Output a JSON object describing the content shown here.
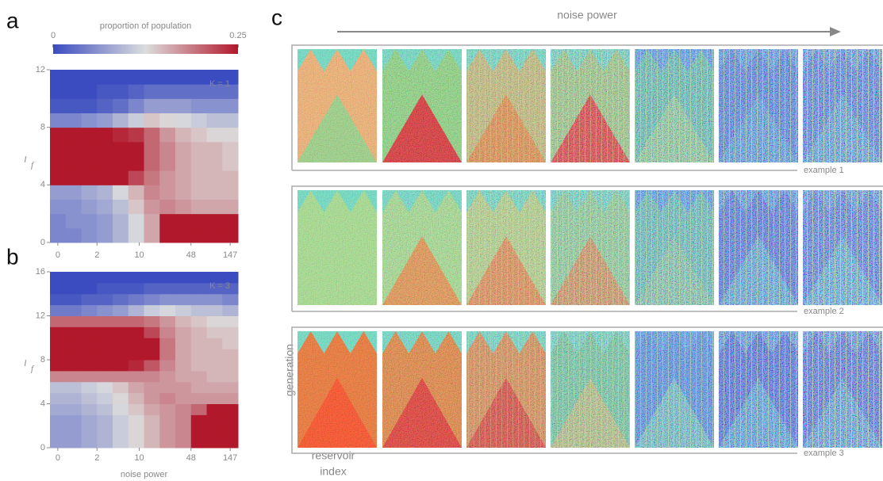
{
  "panel_labels": [
    "a",
    "b",
    "c"
  ],
  "chart_data": [
    {
      "type": "heatmap",
      "title": "K = 1",
      "ylabel": "I",
      "ylabel_sub": "f",
      "xlim": [
        0,
        12
      ],
      "xticks": [
        {
          "value": 0.5,
          "label": "0"
        },
        {
          "value": 3,
          "label": "2"
        },
        {
          "value": 5.7,
          "label": "10"
        },
        {
          "value": 9,
          "label": "48"
        },
        {
          "value": 11.5,
          "label": "147"
        }
      ],
      "ylim": [
        0,
        12
      ],
      "yticks": [
        0,
        4,
        8,
        12
      ],
      "colorbar": {
        "label": "proportion of population",
        "lim": [
          0,
          0.25
        ],
        "ticks": [
          0,
          0.25
        ],
        "colors": [
          "#3b4cc0",
          "#dcdddd",
          "#b2182b"
        ]
      },
      "values": [
        [
          0.05,
          0.05,
          0.06,
          0.07,
          0.09,
          0.12,
          0.16,
          0.25,
          0.25,
          0.25,
          0.25,
          0.25
        ],
        [
          0.05,
          0.06,
          0.06,
          0.07,
          0.09,
          0.12,
          0.16,
          0.25,
          0.25,
          0.25,
          0.25,
          0.25
        ],
        [
          0.06,
          0.06,
          0.07,
          0.08,
          0.1,
          0.14,
          0.17,
          0.18,
          0.17,
          0.16,
          0.16,
          0.16
        ],
        [
          0.07,
          0.07,
          0.08,
          0.09,
          0.12,
          0.15,
          0.18,
          0.17,
          0.16,
          0.15,
          0.15,
          0.15
        ],
        [
          0.25,
          0.25,
          0.25,
          0.25,
          0.25,
          0.22,
          0.19,
          0.17,
          0.16,
          0.15,
          0.15,
          0.15
        ],
        [
          0.25,
          0.25,
          0.25,
          0.25,
          0.25,
          0.25,
          0.2,
          0.18,
          0.16,
          0.15,
          0.15,
          0.14
        ],
        [
          0.25,
          0.25,
          0.25,
          0.25,
          0.25,
          0.25,
          0.2,
          0.18,
          0.16,
          0.15,
          0.15,
          0.14
        ],
        [
          0.25,
          0.25,
          0.25,
          0.25,
          0.24,
          0.23,
          0.2,
          0.17,
          0.15,
          0.14,
          0.13,
          0.13
        ],
        [
          0.05,
          0.05,
          0.06,
          0.07,
          0.09,
          0.11,
          0.14,
          0.13,
          0.12,
          0.11,
          0.1,
          0.1
        ],
        [
          0.01,
          0.01,
          0.01,
          0.02,
          0.03,
          0.05,
          0.07,
          0.07,
          0.07,
          0.06,
          0.06,
          0.06
        ],
        [
          0,
          0,
          0,
          0.01,
          0.01,
          0.02,
          0.03,
          0.03,
          0.03,
          0.03,
          0.03,
          0.03
        ],
        [
          0,
          0,
          0,
          0,
          0,
          0,
          0,
          0,
          0,
          0,
          0,
          0
        ]
      ]
    },
    {
      "type": "heatmap",
      "title": "K = 3",
      "ylabel": "I",
      "ylabel_sub": "f",
      "xlabel": "noise power",
      "xlim": [
        0,
        12
      ],
      "xticks": [
        {
          "value": 0.5,
          "label": "0"
        },
        {
          "value": 3,
          "label": "2"
        },
        {
          "value": 5.7,
          "label": "10"
        },
        {
          "value": 9,
          "label": "48"
        },
        {
          "value": 11.5,
          "label": "147"
        }
      ],
      "ylim": [
        0,
        16
      ],
      "yticks": [
        0,
        4,
        8,
        12,
        16
      ],
      "values": [
        [
          0.07,
          0.07,
          0.08,
          0.09,
          0.11,
          0.13,
          0.15,
          0.17,
          0.18,
          0.25,
          0.25,
          0.25
        ],
        [
          0.07,
          0.07,
          0.08,
          0.09,
          0.11,
          0.13,
          0.15,
          0.17,
          0.18,
          0.25,
          0.25,
          0.25
        ],
        [
          0.07,
          0.07,
          0.08,
          0.09,
          0.11,
          0.13,
          0.15,
          0.17,
          0.18,
          0.25,
          0.25,
          0.25
        ],
        [
          0.08,
          0.08,
          0.09,
          0.1,
          0.12,
          0.14,
          0.16,
          0.17,
          0.18,
          0.2,
          0.25,
          0.25
        ],
        [
          0.09,
          0.09,
          0.1,
          0.11,
          0.13,
          0.15,
          0.17,
          0.18,
          0.17,
          0.17,
          0.17,
          0.17
        ],
        [
          0.1,
          0.1,
          0.11,
          0.12,
          0.14,
          0.16,
          0.17,
          0.17,
          0.17,
          0.16,
          0.16,
          0.16
        ],
        [
          0.18,
          0.18,
          0.18,
          0.18,
          0.18,
          0.18,
          0.18,
          0.17,
          0.16,
          0.16,
          0.15,
          0.15
        ],
        [
          0.25,
          0.25,
          0.25,
          0.25,
          0.25,
          0.24,
          0.21,
          0.18,
          0.16,
          0.15,
          0.15,
          0.15
        ],
        [
          0.25,
          0.25,
          0.25,
          0.25,
          0.25,
          0.25,
          0.25,
          0.19,
          0.16,
          0.15,
          0.15,
          0.15
        ],
        [
          0.25,
          0.25,
          0.25,
          0.25,
          0.25,
          0.25,
          0.25,
          0.19,
          0.16,
          0.15,
          0.15,
          0.14
        ],
        [
          0.25,
          0.25,
          0.25,
          0.25,
          0.25,
          0.25,
          0.22,
          0.18,
          0.16,
          0.15,
          0.14,
          0.14
        ],
        [
          0.2,
          0.2,
          0.2,
          0.2,
          0.2,
          0.2,
          0.19,
          0.17,
          0.15,
          0.14,
          0.13,
          0.13
        ],
        [
          0.04,
          0.04,
          0.05,
          0.06,
          0.07,
          0.09,
          0.11,
          0.12,
          0.11,
          0.1,
          0.1,
          0.09
        ],
        [
          0.01,
          0.01,
          0.02,
          0.02,
          0.03,
          0.04,
          0.05,
          0.06,
          0.06,
          0.06,
          0.06,
          0.05
        ],
        [
          0,
          0,
          0,
          0.01,
          0.01,
          0.01,
          0.02,
          0.02,
          0.02,
          0.02,
          0.02,
          0.02
        ],
        [
          0,
          0,
          0,
          0,
          0,
          0,
          0,
          0,
          0,
          0,
          0,
          0
        ]
      ]
    }
  ],
  "panel_c": {
    "title": "noise power",
    "examples": [
      "example 1",
      "example 2",
      "example 3"
    ],
    "ylabel": "generation",
    "xlabel": [
      "reservoir",
      "index"
    ]
  }
}
